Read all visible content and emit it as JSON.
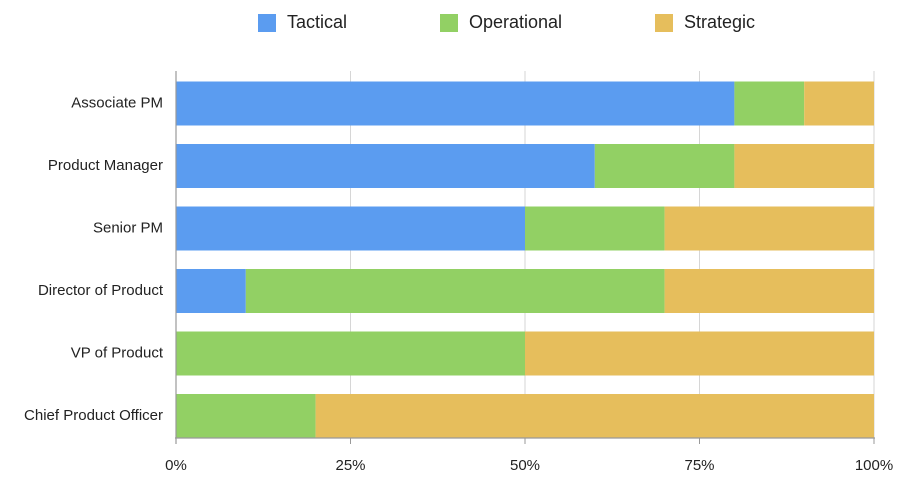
{
  "chart_data": {
    "type": "bar",
    "orientation": "horizontal",
    "stacked": "percent",
    "categories": [
      "Associate PM",
      "Product Manager",
      "Senior PM",
      "Director of Product",
      "VP of Product",
      "Chief Product Officer"
    ],
    "series": [
      {
        "name": "Tactical",
        "color": "#5B9CF0",
        "values": [
          80,
          60,
          50,
          10,
          0,
          0
        ]
      },
      {
        "name": "Operational",
        "color": "#92D064",
        "values": [
          10,
          20,
          20,
          60,
          50,
          20
        ]
      },
      {
        "name": "Strategic",
        "color": "#E6BE5C",
        "values": [
          10,
          20,
          30,
          30,
          50,
          80
        ]
      }
    ],
    "xlim": [
      0,
      100
    ],
    "xticks": [
      "0%",
      "25%",
      "50%",
      "75%",
      "100%"
    ],
    "grid": true,
    "legend": "top-center"
  }
}
